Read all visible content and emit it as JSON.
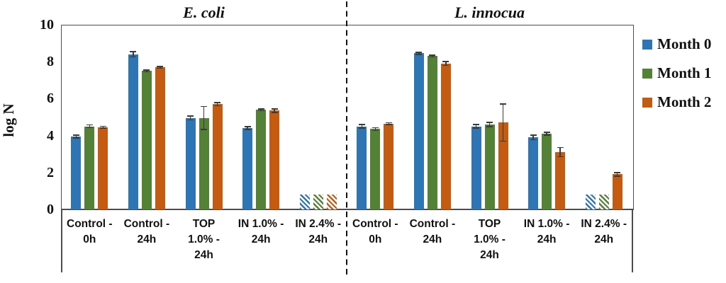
{
  "chart_data": {
    "type": "bar",
    "ylabel": "log N",
    "ylim": [
      0,
      10
    ],
    "yticks": [
      "0",
      "2",
      "4",
      "6",
      "8",
      "10"
    ],
    "grid": false,
    "legend_position": "right",
    "legend_items": [
      {
        "label": "Month 0",
        "color": "#2E75B6"
      },
      {
        "label": "Month 1",
        "color": "#538135"
      },
      {
        "label": "Month 2",
        "color": "#C55A11"
      }
    ],
    "hatch_note": "hatched=true bars are drawn with diagonal stripes (below detection limit)",
    "panels": [
      {
        "title": "E. coli",
        "categories": [
          "Control - 0h",
          "Control - 24h",
          "TOP 1.0% - 24h",
          "IN 1.0% - 24h",
          "IN 2.4% - 24h"
        ],
        "category_lines": [
          [
            "Control -",
            "0h"
          ],
          [
            "Control -",
            "24h"
          ],
          [
            "TOP",
            "1.0% -",
            "24h"
          ],
          [
            "IN 1.0% -",
            "24h"
          ],
          [
            "IN 2.4% -",
            "24h"
          ]
        ],
        "series": [
          {
            "name": "Month 0",
            "color": "#2E75B6",
            "values": [
              3.95,
              8.4,
              4.95,
              4.4,
              0.8
            ],
            "errors": [
              0.08,
              0.15,
              0.1,
              0.08,
              0
            ],
            "hatched": [
              false,
              false,
              false,
              false,
              true
            ]
          },
          {
            "name": "Month 1",
            "color": "#538135",
            "values": [
              4.5,
              7.5,
              4.95,
              5.4,
              0.8
            ],
            "errors": [
              0.08,
              0.05,
              0.63,
              0.05,
              0
            ],
            "hatched": [
              false,
              false,
              false,
              false,
              true
            ]
          },
          {
            "name": "Month 2",
            "color": "#C55A11",
            "values": [
              4.45,
              7.7,
              5.7,
              5.35,
              0.8
            ],
            "errors": [
              0.05,
              0.05,
              0.08,
              0.1,
              0
            ],
            "hatched": [
              false,
              false,
              false,
              false,
              true
            ]
          }
        ]
      },
      {
        "title": "L. innocua",
        "categories": [
          "Control - 0h",
          "Control - 24h",
          "TOP 1.0% - 24h",
          "IN 1.0% - 24h",
          "IN 2.4% - 24h"
        ],
        "category_lines": [
          [
            "Control -",
            "0h"
          ],
          [
            "Control -",
            "24h"
          ],
          [
            "TOP",
            "1.0% -",
            "24h"
          ],
          [
            "IN 1.0% -",
            "24h"
          ],
          [
            "IN 2.4% -",
            "24h"
          ]
        ],
        "series": [
          {
            "name": "Month 0",
            "color": "#2E75B6",
            "values": [
              4.5,
              8.45,
              4.5,
              3.9,
              0.8
            ],
            "errors": [
              0.1,
              0.05,
              0.1,
              0.12,
              0
            ],
            "hatched": [
              false,
              false,
              false,
              false,
              true
            ]
          },
          {
            "name": "Month 1",
            "color": "#538135",
            "values": [
              4.35,
              8.3,
              4.6,
              4.1,
              0.8
            ],
            "errors": [
              0.08,
              0.05,
              0.12,
              0.08,
              0
            ],
            "hatched": [
              false,
              false,
              false,
              false,
              true
            ]
          },
          {
            "name": "Month 2",
            "color": "#C55A11",
            "values": [
              4.65,
              7.9,
              4.7,
              3.1,
              1.9
            ],
            "errors": [
              0.05,
              0.1,
              1.0,
              0.25,
              0.1
            ],
            "hatched": [
              false,
              false,
              false,
              false,
              false
            ]
          }
        ]
      }
    ]
  }
}
